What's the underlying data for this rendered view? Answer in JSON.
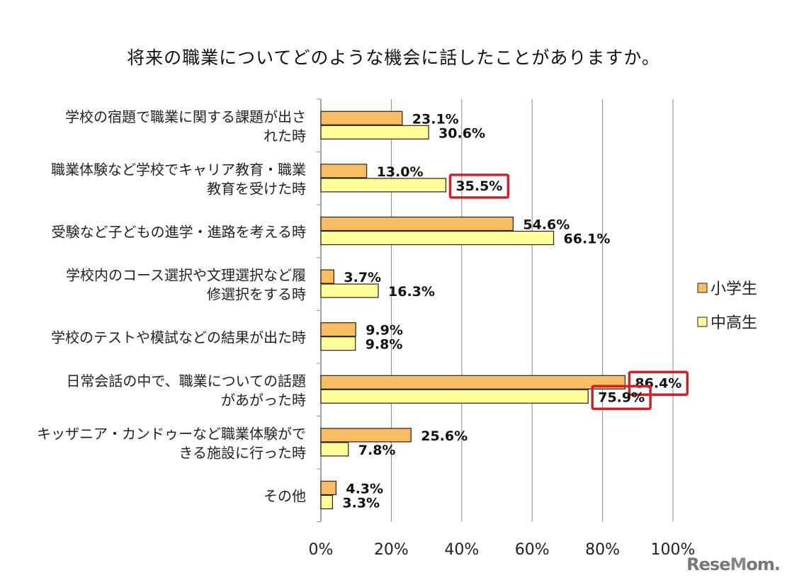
{
  "chart_data": {
    "type": "bar",
    "orientation": "horizontal",
    "title": "将来の職業についてどのような機会に話したことがありますか。",
    "categories": [
      [
        "学校の宿題で職業に関する課題が出さ",
        "れた時"
      ],
      [
        "職業体験など学校でキャリア教育・職業",
        "教育を受けた時"
      ],
      [
        "受験など子どもの進学・進路を考える時"
      ],
      [
        "学校内のコース選択や文理選択など履",
        "修選択をする時"
      ],
      [
        "学校のテストや模試などの結果が出た時"
      ],
      [
        "日常会話の中で、職業についての話題",
        "があがった時"
      ],
      [
        "キッザニア・カンドゥーなど職業体験がで",
        "きる施設に行った時"
      ],
      [
        "その他"
      ]
    ],
    "series": [
      {
        "name": "小学生",
        "color": "#F9BE63",
        "values": [
          23.1,
          13.0,
          54.6,
          3.7,
          9.9,
          86.4,
          25.6,
          4.3
        ],
        "labels": [
          "23.1%",
          "13.0%",
          "54.6%",
          "3.7%",
          "9.9%",
          "86.4%",
          "25.6%",
          "4.3%"
        ]
      },
      {
        "name": "中高生",
        "color": "#FFFF99",
        "values": [
          30.6,
          35.5,
          66.1,
          16.3,
          9.8,
          75.9,
          7.8,
          3.3
        ],
        "labels": [
          "30.6%",
          "35.5%",
          "66.1%",
          "16.3%",
          "9.8%",
          "75.9%",
          "7.8%",
          "3.3%"
        ]
      }
    ],
    "highlighted": [
      [
        1,
        1
      ],
      [
        5,
        0
      ],
      [
        5,
        1
      ]
    ],
    "highlight_color": "#D0202A",
    "xlim": [
      0,
      100
    ],
    "xticks": [
      "0%",
      "20%",
      "40%",
      "60%",
      "80%",
      "100%"
    ],
    "grid": true,
    "legend": "right"
  },
  "logo": "ReseMom"
}
